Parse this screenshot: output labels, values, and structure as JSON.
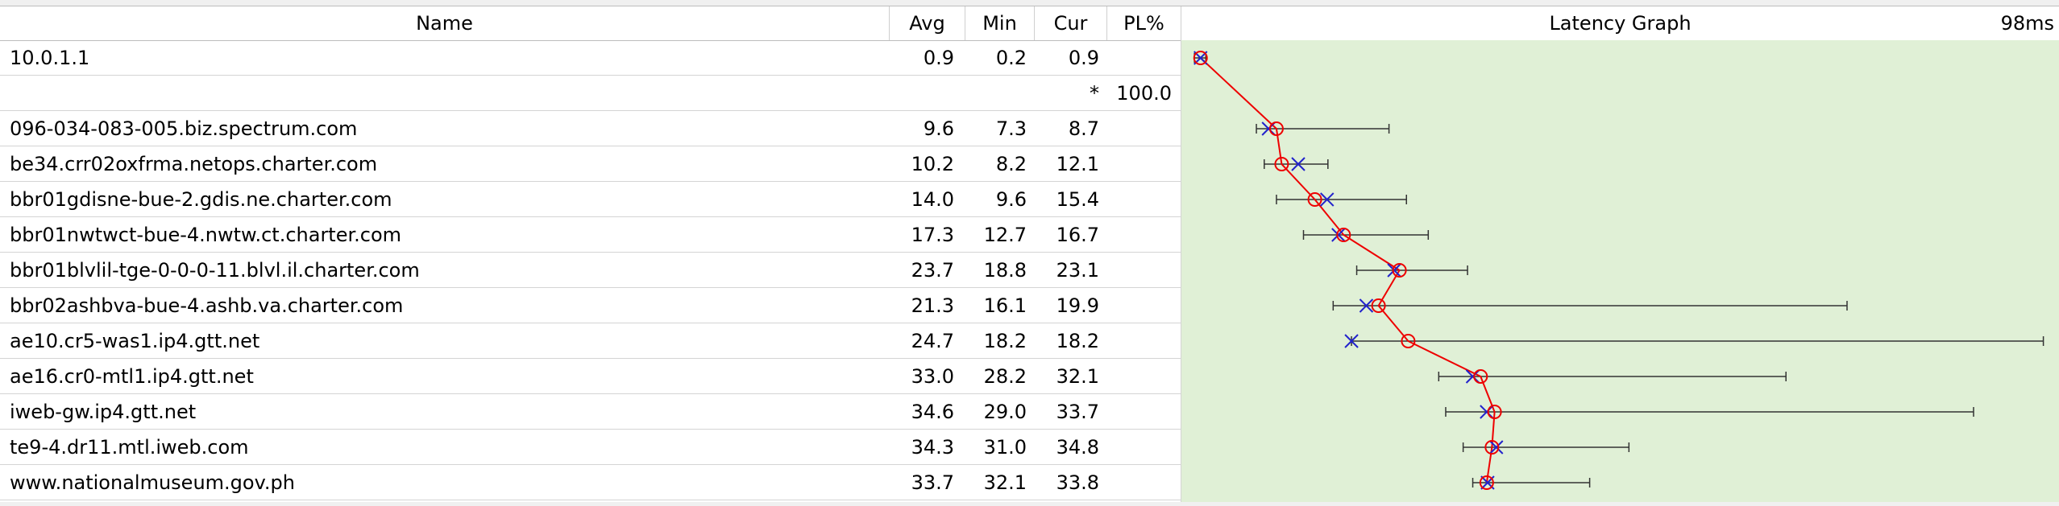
{
  "columns": {
    "name": "Name",
    "avg": "Avg",
    "min": "Min",
    "cur": "Cur",
    "pl": "PL%",
    "graph": "Latency Graph",
    "scale": "98ms"
  },
  "colors": {
    "graph_bg": "#e0f0d6",
    "line": "#ee0000",
    "avg_marker": "#ee0000",
    "cur_marker": "#2222cc",
    "range": "#333333"
  },
  "graph": {
    "max_ms": 98
  },
  "hops": [
    {
      "name": "10.0.1.1",
      "avg": "0.9",
      "min": "0.2",
      "cur": "0.9",
      "pl": "",
      "avg_ms": 0.9,
      "min_ms": 0.2,
      "cur_ms": 0.9,
      "max_ms": 1.5
    },
    {
      "name": "",
      "avg": "",
      "min": "",
      "cur": "*",
      "pl": "100.0",
      "avg_ms": null,
      "min_ms": null,
      "cur_ms": null,
      "max_ms": null
    },
    {
      "name": "096-034-083-005.biz.spectrum.com",
      "avg": "9.6",
      "min": "7.3",
      "cur": "8.7",
      "pl": "",
      "avg_ms": 9.6,
      "min_ms": 7.3,
      "cur_ms": 8.7,
      "max_ms": 22.5
    },
    {
      "name": "be34.crr02oxfrma.netops.charter.com",
      "avg": "10.2",
      "min": "8.2",
      "cur": "12.1",
      "pl": "",
      "avg_ms": 10.2,
      "min_ms": 8.2,
      "cur_ms": 12.1,
      "max_ms": 15.5
    },
    {
      "name": "bbr01gdisne-bue-2.gdis.ne.charter.com",
      "avg": "14.0",
      "min": "9.6",
      "cur": "15.4",
      "pl": "",
      "avg_ms": 14.0,
      "min_ms": 9.6,
      "cur_ms": 15.4,
      "max_ms": 24.5
    },
    {
      "name": "bbr01nwtwct-bue-4.nwtw.ct.charter.com",
      "avg": "17.3",
      "min": "12.7",
      "cur": "16.7",
      "pl": "",
      "avg_ms": 17.3,
      "min_ms": 12.7,
      "cur_ms": 16.7,
      "max_ms": 27.0
    },
    {
      "name": "bbr01blvlil-tge-0-0-0-11.blvl.il.charter.com",
      "avg": "23.7",
      "min": "18.8",
      "cur": "23.1",
      "pl": "",
      "avg_ms": 23.7,
      "min_ms": 18.8,
      "cur_ms": 23.1,
      "max_ms": 31.5
    },
    {
      "name": "bbr02ashbva-bue-4.ashb.va.charter.com",
      "avg": "21.3",
      "min": "16.1",
      "cur": "19.9",
      "pl": "",
      "avg_ms": 21.3,
      "min_ms": 16.1,
      "cur_ms": 19.9,
      "max_ms": 75.0
    },
    {
      "name": "ae10.cr5-was1.ip4.gtt.net",
      "avg": "24.7",
      "min": "18.2",
      "cur": "18.2",
      "pl": "",
      "avg_ms": 24.7,
      "min_ms": 18.2,
      "cur_ms": 18.2,
      "max_ms": 97.5
    },
    {
      "name": "ae16.cr0-mtl1.ip4.gtt.net",
      "avg": "33.0",
      "min": "28.2",
      "cur": "32.1",
      "pl": "",
      "avg_ms": 33.0,
      "min_ms": 28.2,
      "cur_ms": 32.1,
      "max_ms": 68.0
    },
    {
      "name": "iweb-gw.ip4.gtt.net",
      "avg": "34.6",
      "min": "29.0",
      "cur": "33.7",
      "pl": "",
      "avg_ms": 34.6,
      "min_ms": 29.0,
      "cur_ms": 33.7,
      "max_ms": 89.5
    },
    {
      "name": "te9-4.dr11.mtl.iweb.com",
      "avg": "34.3",
      "min": "31.0",
      "cur": "34.8",
      "pl": "",
      "avg_ms": 34.3,
      "min_ms": 31.0,
      "cur_ms": 34.8,
      "max_ms": 50.0
    },
    {
      "name": "www.nationalmuseum.gov.ph",
      "avg": "33.7",
      "min": "32.1",
      "cur": "33.8",
      "pl": "",
      "avg_ms": 33.7,
      "min_ms": 32.1,
      "cur_ms": 33.8,
      "max_ms": 45.5
    }
  ]
}
